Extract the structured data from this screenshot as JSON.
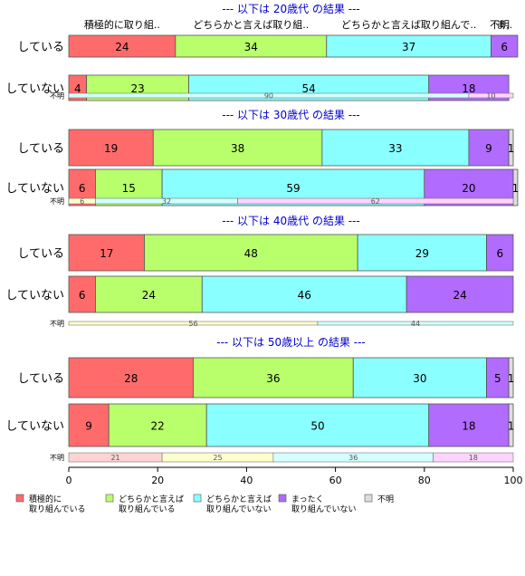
{
  "chart_data": {
    "type": "bar",
    "orientation": "horizontal",
    "stacked": true,
    "xlim": [
      0,
      100
    ],
    "xticks": [
      0,
      20,
      40,
      60,
      80,
      100
    ],
    "grid": false,
    "legend_position": "bottom",
    "categories": [
      "積極的に\n取り組んでいる",
      "どちらかと言えば\n取り組んでいる",
      "どちらかと言えば\n取り組んでいない",
      "まったく\n取り組んでいない",
      "不明"
    ],
    "header_labels": [
      "積極的に取り組..",
      "どちらかと言えば取り組..",
      "どちらかと言えば取り組んで..",
      "ま..",
      "不明"
    ],
    "colors": [
      "#ff6b6b",
      "#b8ff6b",
      "#8affff",
      "#b26bff",
      "#dddddd"
    ],
    "light_colors": [
      "#ffd3d3",
      "#ffffcc",
      "#d3ffff",
      "#ffd3ff"
    ],
    "panels": [
      {
        "title": "--- 以下は 20歳代 の結果 ---",
        "rows": [
          {
            "label": "している",
            "values": [
              24,
              34,
              37,
              6,
              0
            ]
          },
          {
            "label": "していない",
            "values": [
              4,
              23,
              54,
              18,
              0
            ]
          }
        ],
        "unknown": {
          "label": "不明",
          "values": [
            90,
            10
          ]
        }
      },
      {
        "title": "--- 以下は 30歳代 の結果 ---",
        "rows": [
          {
            "label": "している",
            "values": [
              19,
              38,
              33,
              9,
              1
            ]
          },
          {
            "label": "していない",
            "values": [
              6,
              15,
              59,
              20,
              1
            ]
          }
        ],
        "unknown": {
          "label": "不明",
          "values": [
            6,
            32,
            62
          ]
        }
      },
      {
        "title": "--- 以下は 40歳代 の結果 ---",
        "rows": [
          {
            "label": "している",
            "values": [
              17,
              48,
              29,
              6,
              0
            ]
          },
          {
            "label": "していない",
            "values": [
              6,
              24,
              46,
              24,
              0
            ]
          }
        ],
        "unknown": {
          "label": "不明",
          "values": [
            56,
            44
          ]
        }
      },
      {
        "title": "--- 以下は 50歳以上 の結果 ---",
        "rows": [
          {
            "label": "している",
            "values": [
              28,
              36,
              30,
              5,
              1
            ]
          },
          {
            "label": "していない",
            "values": [
              9,
              22,
              50,
              18,
              1
            ]
          }
        ],
        "unknown": {
          "label": "不明",
          "values": [
            21,
            25,
            36,
            18
          ]
        }
      }
    ]
  }
}
